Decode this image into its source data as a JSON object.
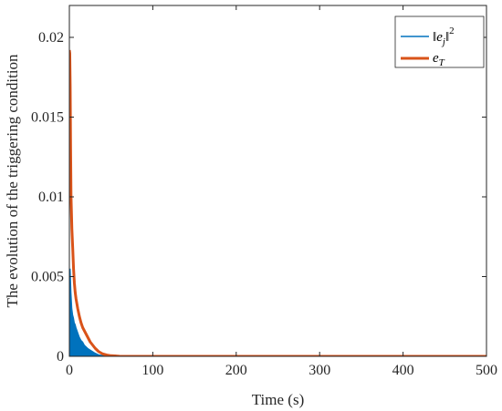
{
  "chart_data": {
    "type": "line",
    "xlabel": "Time (s)",
    "ylabel": "The evolution of the triggering condition",
    "xlim": [
      0,
      500
    ],
    "ylim": [
      0,
      0.022
    ],
    "x_ticks": [
      "0",
      "100",
      "200",
      "300",
      "400",
      "500"
    ],
    "y_ticks": [
      "0",
      "0.005",
      "0.01",
      "0.015",
      "0.02"
    ],
    "grid": false,
    "legend_position": "top-right",
    "series": [
      {
        "name": "‖e_j‖²",
        "style": "filled spikes",
        "color": "#0072BD",
        "x": [
          0,
          1,
          2,
          3,
          4,
          5,
          6,
          7,
          8,
          10,
          12,
          14,
          16,
          18,
          20,
          22,
          25,
          28,
          31,
          35,
          40,
          50,
          60,
          80,
          100,
          200,
          300,
          400,
          500
        ],
        "y": [
          0.0036,
          0.0055,
          0.004,
          0.003,
          0.0026,
          0.0024,
          0.0021,
          0.002,
          0.0018,
          0.0015,
          0.0012,
          0.001,
          0.0009,
          0.0007,
          0.0006,
          0.0005,
          0.0004,
          0.0003,
          0.0002,
          0.0001,
          5e-05,
          2e-05,
          0.0,
          0.0,
          0.0,
          0.0,
          0.0,
          0.0,
          0.0
        ]
      },
      {
        "name": "e_T",
        "style": "thick line",
        "color": "#D95319",
        "x": [
          0,
          0.5,
          1,
          1.5,
          2,
          3,
          4,
          5,
          6,
          7,
          8,
          10,
          12,
          14,
          16,
          18,
          20,
          22,
          25,
          28,
          31,
          35,
          40,
          45,
          50,
          60,
          80,
          100,
          200,
          300,
          400,
          500
        ],
        "y": [
          0.0192,
          0.019,
          0.017,
          0.013,
          0.01,
          0.008,
          0.0068,
          0.0055,
          0.0046,
          0.004,
          0.0036,
          0.003,
          0.0025,
          0.0021,
          0.0018,
          0.0016,
          0.0014,
          0.0012,
          0.0009,
          0.0007,
          0.0005,
          0.0003,
          0.00015,
          8e-05,
          4e-05,
          1e-05,
          0.0,
          0.0,
          0.0,
          0.0,
          0.0,
          0.0
        ]
      }
    ],
    "legend_entries": [
      "‖e",
      "j",
      "‖",
      "2",
      "e",
      "T"
    ]
  }
}
